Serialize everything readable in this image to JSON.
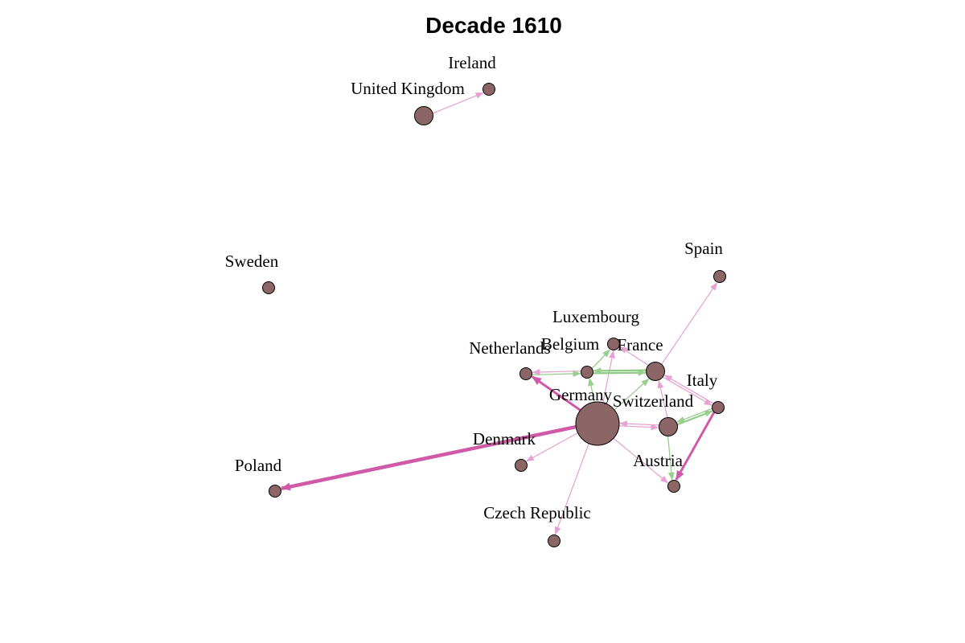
{
  "title": "Decade 1610",
  "colors": {
    "node_fill": "#8c6567",
    "node_stroke": "#000000",
    "edge_outgoing": "#d966b4",
    "edge_mutual": "#77c06b",
    "background": "#ffffff"
  },
  "nodes": [
    {
      "id": "ireland",
      "label": "Ireland",
      "size": "small"
    },
    {
      "id": "uk",
      "label": "United Kingdom",
      "size": "medium"
    },
    {
      "id": "sweden",
      "label": "Sweden",
      "size": "small"
    },
    {
      "id": "spain",
      "label": "Spain",
      "size": "small"
    },
    {
      "id": "luxembourg",
      "label": "Luxembourg",
      "size": "small"
    },
    {
      "id": "belgium",
      "label": "Belgium",
      "size": "small"
    },
    {
      "id": "france",
      "label": "France",
      "size": "medium"
    },
    {
      "id": "netherlands",
      "label": "Netherlands",
      "size": "small"
    },
    {
      "id": "italy",
      "label": "Italy",
      "size": "small"
    },
    {
      "id": "germany",
      "label": "Germany",
      "size": "large"
    },
    {
      "id": "switzerland",
      "label": "Switzerland",
      "size": "medium"
    },
    {
      "id": "denmark",
      "label": "Denmark",
      "size": "small"
    },
    {
      "id": "austria",
      "label": "Austria",
      "size": "small"
    },
    {
      "id": "poland",
      "label": "Poland",
      "size": "small"
    },
    {
      "id": "czech",
      "label": "Czech Republic",
      "size": "small"
    }
  ],
  "edges": [
    {
      "from": "uk",
      "to": "ireland",
      "type": "pink",
      "weight": 1
    },
    {
      "from": "germany",
      "to": "poland",
      "type": "pink",
      "weight": 4
    },
    {
      "from": "germany",
      "to": "netherlands",
      "type": "pink",
      "weight": 3
    },
    {
      "from": "germany",
      "to": "denmark",
      "type": "pink",
      "weight": 1
    },
    {
      "from": "germany",
      "to": "czech",
      "type": "pink",
      "weight": 1
    },
    {
      "from": "germany",
      "to": "luxembourg",
      "type": "pink",
      "weight": 1
    },
    {
      "from": "germany",
      "to": "switzerland",
      "type": "pink",
      "weight": 1
    },
    {
      "from": "germany",
      "to": "belgium",
      "type": "green",
      "weight": 1
    },
    {
      "from": "germany",
      "to": "france",
      "type": "green",
      "weight": 1
    },
    {
      "from": "switzerland",
      "to": "germany",
      "type": "pink",
      "weight": 1
    },
    {
      "from": "belgium",
      "to": "netherlands",
      "type": "pink",
      "weight": 1
    },
    {
      "from": "netherlands",
      "to": "belgium",
      "type": "green",
      "weight": 1
    },
    {
      "from": "belgium",
      "to": "luxembourg",
      "type": "green",
      "weight": 1
    },
    {
      "from": "belgium",
      "to": "france",
      "type": "green",
      "weight": 2
    },
    {
      "from": "france",
      "to": "belgium",
      "type": "green",
      "weight": 2
    },
    {
      "from": "france",
      "to": "luxembourg",
      "type": "pink",
      "weight": 1
    },
    {
      "from": "france",
      "to": "spain",
      "type": "pink",
      "weight": 1
    },
    {
      "from": "france",
      "to": "italy",
      "type": "pink",
      "weight": 1
    },
    {
      "from": "italy",
      "to": "france",
      "type": "pink",
      "weight": 1
    },
    {
      "from": "switzerland",
      "to": "france",
      "type": "pink",
      "weight": 1
    },
    {
      "from": "switzerland",
      "to": "italy",
      "type": "green",
      "weight": 2
    },
    {
      "from": "italy",
      "to": "switzerland",
      "type": "green",
      "weight": 1
    },
    {
      "from": "italy",
      "to": "austria",
      "type": "pink",
      "weight": 3
    },
    {
      "from": "switzerland",
      "to": "austria",
      "type": "green",
      "weight": 1
    },
    {
      "from": "germany",
      "to": "austria",
      "type": "pink",
      "weight": 1
    }
  ]
}
